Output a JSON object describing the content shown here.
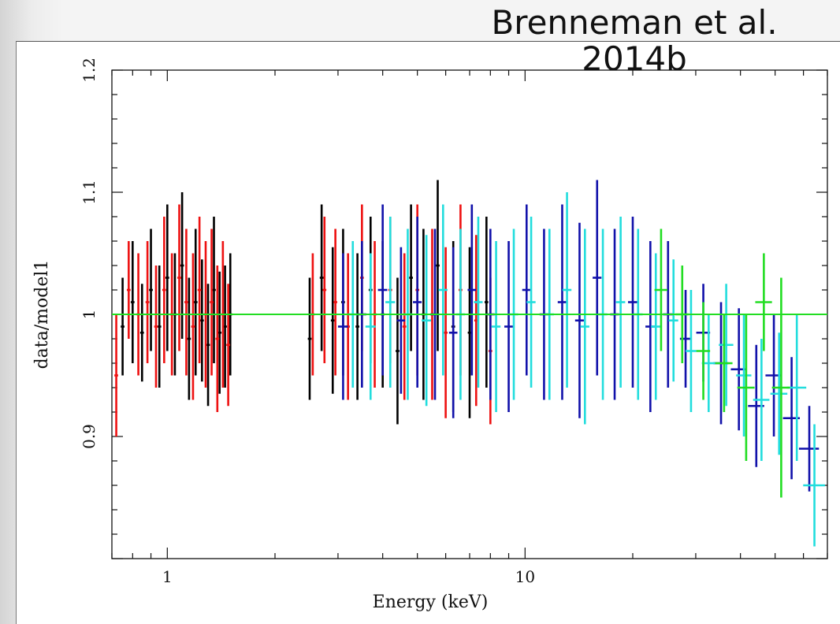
{
  "citation": "Brenneman et al. 2014b",
  "chart_data": {
    "type": "scatter",
    "title": "",
    "xlabel": "Energy (keV)",
    "ylabel": "data/model1",
    "x_scale": "log",
    "xlim": [
      0.7,
      70
    ],
    "ylim": [
      0.8,
      1.2
    ],
    "x_ticks": [
      "1",
      "10"
    ],
    "y_ticks": [
      "0.9",
      "1",
      "1.1",
      "1.2"
    ],
    "reference_line": {
      "y": 1.0,
      "color": "#22dd22"
    },
    "series": [
      {
        "color": "#000000",
        "x": [
          0.75,
          0.8,
          0.85,
          0.9,
          0.95,
          1.0,
          1.05,
          1.1,
          1.15,
          1.2,
          1.25,
          1.3,
          1.35,
          1.4,
          1.45,
          1.5,
          2.5,
          2.7,
          2.9,
          3.1,
          3.4,
          3.7,
          4.0,
          4.4,
          4.8,
          5.2,
          5.7,
          6.3,
          7.0,
          7.8
        ],
        "y": [
          0.99,
          1.01,
          0.985,
          1.02,
          0.99,
          1.03,
          1.0,
          1.04,
          0.98,
          1.01,
          0.995,
          0.975,
          1.02,
          0.985,
          0.99,
          1.0,
          0.98,
          1.03,
          0.995,
          1.01,
          0.99,
          1.02,
          1.0,
          0.97,
          1.03,
          1.0,
          1.04,
          0.99,
          0.985,
          1.01
        ],
        "err": [
          0.04,
          0.05,
          0.04,
          0.05,
          0.05,
          0.06,
          0.05,
          0.06,
          0.05,
          0.06,
          0.05,
          0.05,
          0.06,
          0.05,
          0.05,
          0.05,
          0.05,
          0.06,
          0.06,
          0.06,
          0.06,
          0.06,
          0.06,
          0.06,
          0.06,
          0.07,
          0.07,
          0.07,
          0.07,
          0.07
        ]
      },
      {
        "color": "#ee1111",
        "x": [
          0.72,
          0.78,
          0.83,
          0.88,
          0.93,
          0.98,
          1.03,
          1.08,
          1.13,
          1.18,
          1.23,
          1.28,
          1.33,
          1.38,
          1.43,
          1.48,
          2.55,
          2.75,
          2.95,
          3.2,
          3.5,
          3.8,
          4.2,
          4.6,
          5.0,
          5.5,
          6.0,
          6.6,
          7.3,
          8.0
        ],
        "y": [
          0.95,
          1.02,
          1.0,
          1.01,
          0.99,
          1.02,
          1.0,
          1.03,
          1.01,
          0.99,
          1.02,
          1.0,
          1.01,
          0.98,
          1.0,
          0.975,
          1.0,
          1.02,
          1.01,
          0.99,
          1.03,
          1.0,
          1.02,
          0.99,
          1.02,
          1.0,
          0.985,
          1.02,
          0.995,
          0.97
        ],
        "err": [
          0.05,
          0.04,
          0.05,
          0.05,
          0.05,
          0.06,
          0.05,
          0.06,
          0.06,
          0.06,
          0.06,
          0.06,
          0.06,
          0.06,
          0.06,
          0.05,
          0.05,
          0.06,
          0.06,
          0.06,
          0.06,
          0.06,
          0.06,
          0.06,
          0.07,
          0.07,
          0.07,
          0.07,
          0.07,
          0.06
        ]
      },
      {
        "color": "#1111aa",
        "x": [
          3.1,
          3.5,
          4.0,
          4.5,
          5.0,
          5.6,
          6.3,
          7.1,
          8.0,
          9.0,
          10.1,
          11.3,
          12.7,
          14.2,
          15.9,
          17.8,
          20.0,
          22.4,
          25.1,
          28.1,
          31.5,
          35.3,
          39.6,
          44.3,
          49.6,
          55.6,
          62.3
        ],
        "y": [
          0.99,
          1.0,
          1.02,
          0.995,
          1.01,
          1.0,
          0.985,
          1.02,
          1.0,
          0.99,
          1.02,
          1.0,
          1.01,
          0.995,
          1.03,
          1.0,
          1.01,
          0.99,
          1.0,
          0.98,
          0.985,
          0.96,
          0.955,
          0.925,
          0.95,
          0.915,
          0.89
        ],
        "err": [
          0.06,
          0.06,
          0.07,
          0.06,
          0.07,
          0.07,
          0.07,
          0.07,
          0.07,
          0.07,
          0.07,
          0.07,
          0.08,
          0.08,
          0.08,
          0.07,
          0.07,
          0.07,
          0.06,
          0.04,
          0.04,
          0.05,
          0.05,
          0.05,
          0.05,
          0.05,
          0.035
        ],
        "xerr": [
          0.1,
          0.1,
          0.12,
          0.12,
          0.14,
          0.15,
          0.17,
          0.19,
          0.22,
          0.25,
          0.28,
          0.32,
          0.36,
          0.4,
          0.45,
          0.5,
          0.6,
          0.7,
          0.8,
          1.0,
          1.4,
          1.7,
          2.0,
          2.3,
          2.6,
          3.0,
          4.0
        ]
      },
      {
        "color": "#22dddd",
        "x": [
          3.3,
          3.7,
          4.2,
          4.7,
          5.3,
          5.9,
          6.6,
          7.4,
          8.3,
          9.3,
          10.4,
          11.7,
          13.1,
          14.7,
          16.5,
          18.5,
          20.7,
          23.2,
          26.0,
          29.1,
          32.6,
          36.5,
          40.9,
          45.8,
          51.3,
          57.5,
          64.4
        ],
        "y": [
          1.0,
          0.99,
          1.01,
          1.0,
          0.995,
          1.02,
          1.0,
          1.01,
          0.99,
          1.0,
          1.01,
          1.0,
          1.02,
          0.99,
          1.0,
          1.01,
          1.0,
          0.99,
          0.995,
          0.97,
          0.96,
          0.975,
          0.95,
          0.93,
          0.935,
          0.94,
          0.86
        ],
        "err": [
          0.06,
          0.06,
          0.07,
          0.07,
          0.07,
          0.07,
          0.07,
          0.07,
          0.07,
          0.07,
          0.07,
          0.07,
          0.08,
          0.08,
          0.07,
          0.07,
          0.07,
          0.06,
          0.05,
          0.05,
          0.04,
          0.05,
          0.05,
          0.05,
          0.05,
          0.06,
          0.05
        ],
        "xerr": [
          0.1,
          0.12,
          0.13,
          0.14,
          0.16,
          0.17,
          0.19,
          0.21,
          0.24,
          0.27,
          0.3,
          0.34,
          0.38,
          0.43,
          0.48,
          0.55,
          0.62,
          0.7,
          0.8,
          1.0,
          1.4,
          1.7,
          2.0,
          2.4,
          2.8,
          3.6,
          4.5
        ]
      },
      {
        "color": "#22dd22",
        "x": [
          24.0,
          27.5,
          31.5,
          36.0,
          41.5,
          46.5,
          52.0
        ],
        "y": [
          1.02,
          1.0,
          0.97,
          0.96,
          0.94,
          1.01,
          0.94
        ],
        "err": [
          0.05,
          0.04,
          0.04,
          0.04,
          0.06,
          0.04,
          0.09
        ],
        "xerr": [
          1.0,
          1.2,
          1.4,
          2.0,
          2.3,
          2.5,
          3.0
        ]
      }
    ]
  }
}
